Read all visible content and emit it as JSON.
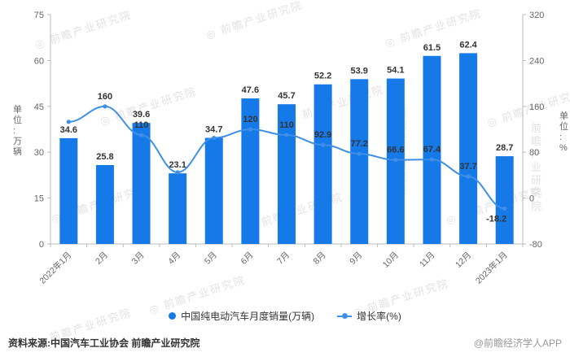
{
  "page": {
    "source_note": "资料来源:中国汽车工业协会 前瞻产业研究院",
    "credit": "@前瞻经济学人APP",
    "watermark_text": "前瞻产业研究院"
  },
  "legend": {
    "items": [
      {
        "label": "中国纯电动汽车月度销量(万辆)",
        "marker": "circle"
      },
      {
        "label": "增长率(%)",
        "marker": "line-dot"
      }
    ]
  },
  "chart_data": {
    "type": "bar+line",
    "categories": [
      "2022年1月",
      "2月",
      "3月",
      "4月",
      "5月",
      "6月",
      "7月",
      "8月",
      "9月",
      "10月",
      "11月",
      "12月",
      "2023年1月"
    ],
    "series": [
      {
        "name": "中国纯电动汽车月度销量(万辆)",
        "type": "bar",
        "axis": "left",
        "values": [
          34.6,
          25.8,
          39.6,
          23.1,
          34.7,
          47.6,
          45.7,
          52.2,
          53.9,
          54.1,
          61.5,
          62.4,
          28.7
        ]
      },
      {
        "name": "增长率(%)",
        "type": "line",
        "axis": "right",
        "values": [
          133,
          160,
          110,
          45,
          105,
          120,
          110,
          92.9,
          77.2,
          66.6,
          67.4,
          37.7,
          -18.2
        ],
        "labels": [
          "",
          "160",
          "110",
          "",
          "",
          "120",
          "110",
          "92.9",
          "77.2",
          "66.6",
          "67.4",
          "37.7",
          "-18.2"
        ],
        "note": "unlabeled points estimated from gridlines"
      }
    ],
    "left_axis": {
      "title": "单位:万辆",
      "min": 0,
      "max": 75,
      "ticks": [
        0,
        15,
        30,
        45,
        60,
        75
      ]
    },
    "right_axis": {
      "title": "单位:%",
      "min": -80,
      "max": 320,
      "ticks": [
        -80,
        0,
        80,
        160,
        240,
        320
      ]
    },
    "colors": {
      "bar": "#1679e8",
      "line": "#3f8fe8",
      "value_label": "#333333",
      "axis": "#bbbbbb",
      "tick_text": "#666666"
    },
    "grid": false,
    "legend_position": "bottom"
  }
}
